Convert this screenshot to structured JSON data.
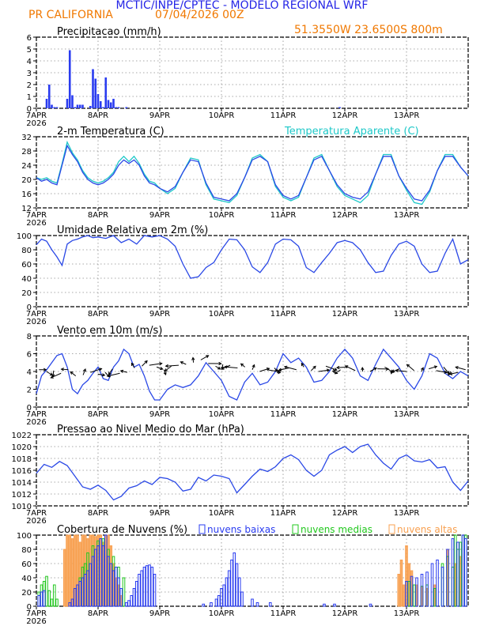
{
  "header": {
    "title": "MCTIC/INPE/CPTEC - MODELO REGIONAL WRF",
    "location": "PR CALIFORNIA",
    "run_date": "07/04/2026 00Z",
    "coordinates": "51.3550W 23.6500S 800m"
  },
  "colors": {
    "title": "#2424e6",
    "subtitle": "#f07800",
    "line_main": "#2a48e6",
    "line_apparent": "#1ec8c8",
    "precip_bar": "#2a3cf0",
    "cloud_low": "#2a3cf0",
    "cloud_mid": "#22c81e",
    "cloud_high": "#f8a050",
    "grid": "#8c8c8c"
  },
  "chart_data": [
    {
      "id": "precip",
      "type": "bar",
      "title": "Precipitacao (mm/h)",
      "ylim": [
        0,
        6
      ],
      "yticks": [
        0,
        1,
        2,
        3,
        4,
        5,
        6
      ],
      "x": [
        4,
        5,
        6,
        7,
        8,
        12,
        13,
        14,
        15,
        16,
        17,
        18,
        21,
        22,
        23,
        24,
        25,
        26,
        27,
        28,
        29,
        30,
        31,
        32,
        35,
        118
      ],
      "values": [
        0.8,
        2.0,
        0.3,
        0.1,
        0.1,
        0.8,
        4.9,
        1.1,
        0.1,
        0.3,
        0.3,
        0.3,
        0.2,
        3.3,
        2.5,
        1.2,
        0.6,
        0.1,
        2.6,
        0.7,
        0.5,
        0.8,
        0.1,
        0.1,
        0.1,
        0.1
      ]
    },
    {
      "id": "temp",
      "type": "line",
      "title": "2-m Temperatura (C)",
      "ylim": [
        12,
        32
      ],
      "yticks": [
        12,
        16,
        20,
        24,
        28,
        32
      ],
      "series": [
        {
          "name": "2-m Temperatura (C)",
          "x": [
            0,
            2,
            4,
            6,
            8,
            10,
            12,
            14,
            16,
            18,
            20,
            22,
            24,
            26,
            28,
            30,
            32,
            34,
            36,
            38,
            40,
            42,
            44,
            46,
            48,
            51,
            54,
            57,
            60,
            63,
            66,
            69,
            72,
            75,
            78,
            81,
            84,
            87,
            90,
            93,
            96,
            99,
            102,
            105,
            108,
            111,
            114,
            117,
            120,
            123,
            126,
            129,
            132,
            135,
            138,
            141,
            144,
            147,
            150,
            153,
            156,
            159,
            162,
            165,
            168
          ],
          "values": [
            20.5,
            19.5,
            20.0,
            19.0,
            18.5,
            24.0,
            29.5,
            27.0,
            25.0,
            22.0,
            20.0,
            19.0,
            18.5,
            19.0,
            20.0,
            21.5,
            24.0,
            25.5,
            24.5,
            25.5,
            24.0,
            21.0,
            19.0,
            18.5,
            17.5,
            16.5,
            18.0,
            22.0,
            25.5,
            25.0,
            19.0,
            15.0,
            14.5,
            14.0,
            16.0,
            20.5,
            25.5,
            26.5,
            25.0,
            18.5,
            15.5,
            14.5,
            15.5,
            20.5,
            25.5,
            26.5,
            22.5,
            18.5,
            16.0,
            15.0,
            14.5,
            16.5,
            21.5,
            26.5,
            26.5,
            21.0,
            17.5,
            14.5,
            14.0,
            17.0,
            22.5,
            26.5,
            26.5,
            23.5,
            21.0
          ]
        },
        {
          "name": "Temperatura Aparente (C)",
          "x": [
            0,
            2,
            4,
            6,
            8,
            10,
            12,
            14,
            16,
            18,
            20,
            22,
            24,
            26,
            28,
            30,
            32,
            34,
            36,
            38,
            40,
            42,
            44,
            46,
            48,
            51,
            54,
            57,
            60,
            63,
            66,
            69,
            72,
            75,
            78,
            81,
            84,
            87,
            90,
            93,
            96,
            99,
            102,
            105,
            108,
            111,
            114,
            117,
            120,
            123,
            126,
            129,
            132,
            135,
            138,
            141,
            144,
            147,
            150,
            153,
            156,
            159,
            162,
            165,
            168
          ],
          "values": [
            20.5,
            20.0,
            20.5,
            19.5,
            19.0,
            24.5,
            30.5,
            27.5,
            25.5,
            22.5,
            20.5,
            19.5,
            19.0,
            19.5,
            20.5,
            22.0,
            25.0,
            26.5,
            25.0,
            26.5,
            24.5,
            21.5,
            19.5,
            19.0,
            17.5,
            16.0,
            17.5,
            22.0,
            26.0,
            25.5,
            18.5,
            14.5,
            14.0,
            13.5,
            15.5,
            20.5,
            26.0,
            27.0,
            25.0,
            18.0,
            15.0,
            14.0,
            15.0,
            20.5,
            26.0,
            27.0,
            22.5,
            18.0,
            15.5,
            14.5,
            13.5,
            15.5,
            21.5,
            27.0,
            27.0,
            21.0,
            17.0,
            13.5,
            13.0,
            16.5,
            22.5,
            27.0,
            27.0,
            23.5,
            21.0
          ]
        }
      ]
    },
    {
      "id": "rh",
      "type": "line",
      "title": "Umidade Relativa em 2m (%)",
      "ylim": [
        0,
        100
      ],
      "yticks": [
        0,
        20,
        40,
        60,
        80,
        100
      ],
      "series": [
        {
          "x": [
            0,
            2,
            4,
            6,
            8,
            10,
            12,
            14,
            16,
            18,
            20,
            22,
            24,
            27,
            30,
            33,
            36,
            39,
            42,
            45,
            48,
            51,
            54,
            57,
            60,
            63,
            66,
            69,
            72,
            75,
            78,
            81,
            84,
            87,
            90,
            93,
            96,
            99,
            102,
            105,
            108,
            111,
            114,
            117,
            120,
            123,
            126,
            129,
            132,
            135,
            138,
            141,
            144,
            147,
            150,
            153,
            156,
            159,
            162,
            165,
            168
          ],
          "values": [
            87,
            95,
            92,
            80,
            70,
            58,
            88,
            93,
            95,
            98,
            100,
            97,
            98,
            96,
            100,
            90,
            95,
            88,
            100,
            98,
            100,
            95,
            85,
            60,
            40,
            42,
            55,
            62,
            80,
            95,
            94,
            80,
            56,
            48,
            62,
            88,
            95,
            94,
            85,
            55,
            48,
            62,
            75,
            90,
            93,
            90,
            80,
            62,
            48,
            50,
            72,
            88,
            92,
            85,
            60,
            48,
            50,
            75,
            95,
            60,
            66
          ]
        }
      ]
    },
    {
      "id": "wind",
      "type": "line",
      "title": "Vento em 10m (m/s)",
      "ylim": [
        0,
        8
      ],
      "yticks": [
        0,
        2,
        4,
        6,
        8
      ],
      "series": [
        {
          "x": [
            0,
            2,
            4,
            6,
            8,
            10,
            12,
            14,
            16,
            18,
            20,
            22,
            24,
            26,
            28,
            30,
            32,
            34,
            36,
            38,
            40,
            42,
            44,
            46,
            48,
            51,
            54,
            57,
            60,
            63,
            66,
            69,
            72,
            75,
            78,
            81,
            84,
            87,
            90,
            93,
            96,
            99,
            102,
            105,
            108,
            111,
            114,
            117,
            120,
            123,
            126,
            129,
            132,
            135,
            138,
            141,
            144,
            147,
            150,
            153,
            156,
            159,
            162,
            165,
            168
          ],
          "values": [
            1.5,
            3.5,
            4.2,
            5.0,
            5.8,
            6.0,
            4.5,
            2.0,
            1.5,
            2.5,
            3.0,
            3.8,
            4.5,
            3.2,
            3.0,
            4.5,
            5.2,
            6.5,
            6.0,
            4.5,
            4.8,
            3.5,
            1.8,
            0.8,
            0.8,
            2.0,
            2.5,
            2.2,
            2.5,
            3.5,
            5.0,
            4.0,
            3.0,
            1.2,
            0.8,
            2.8,
            3.8,
            2.5,
            2.8,
            4.0,
            6.0,
            5.0,
            5.5,
            4.5,
            2.8,
            3.0,
            4.0,
            5.5,
            6.5,
            5.5,
            3.5,
            3.0,
            4.8,
            6.5,
            5.5,
            4.5,
            3.0,
            2.0,
            3.5,
            6.0,
            5.5,
            3.8,
            3.2,
            4.0,
            3.5
          ]
        }
      ],
      "barbs_speed": [
        4.2,
        4.0,
        4.1,
        3.8,
        4.2,
        3.5,
        3.6,
        3.9,
        3.7,
        3.9,
        4.3,
        3.8,
        3.9,
        4.4,
        4.6,
        4.7,
        4.5,
        4.2,
        4.6,
        4.7,
        4.8,
        5.0,
        5.3,
        4.9,
        4.6,
        4.8,
        4.7,
        4.4,
        4.5,
        4.2,
        4.0,
        4.2,
        4.4,
        4.3,
        4.4,
        4.2,
        4.5,
        4.1,
        4.0,
        4.6,
        4.3,
        4.2,
        4.5,
        4.1,
        4.0,
        4.0,
        4.3,
        4.5,
        4.2,
        4.3,
        4.0,
        4.1,
        4.0,
        4.3,
        4.1,
        4.5,
        4.0,
        3.9,
        4.2
      ]
    },
    {
      "id": "pressure",
      "type": "line",
      "title": "Pressao ao Nivel Medio do Mar (hPa)",
      "ylim": [
        1010,
        1022
      ],
      "yticks": [
        1010,
        1012,
        1014,
        1016,
        1018,
        1020,
        1022
      ],
      "series": [
        {
          "x": [
            0,
            3,
            6,
            9,
            12,
            15,
            18,
            21,
            24,
            27,
            30,
            33,
            36,
            39,
            42,
            45,
            48,
            51,
            54,
            57,
            60,
            63,
            66,
            69,
            72,
            75,
            78,
            81,
            84,
            87,
            90,
            93,
            96,
            99,
            102,
            105,
            108,
            111,
            114,
            117,
            120,
            123,
            126,
            129,
            132,
            135,
            138,
            141,
            144,
            147,
            150,
            153,
            156,
            159,
            162,
            165,
            168
          ],
          "values": [
            1015.5,
            1017.0,
            1016.5,
            1017.5,
            1016.8,
            1015.0,
            1013.2,
            1012.8,
            1013.5,
            1012.6,
            1011.0,
            1011.6,
            1013.0,
            1013.4,
            1014.2,
            1013.6,
            1014.8,
            1014.6,
            1014.0,
            1012.5,
            1012.8,
            1014.8,
            1014.2,
            1015.2,
            1015.0,
            1014.6,
            1012.2,
            1013.6,
            1015.0,
            1016.2,
            1015.8,
            1016.6,
            1018.0,
            1018.6,
            1017.8,
            1016.0,
            1015.0,
            1016.0,
            1018.6,
            1019.4,
            1020.0,
            1019.0,
            1020.0,
            1020.4,
            1018.6,
            1017.2,
            1016.2,
            1018.0,
            1018.6,
            1017.6,
            1017.4,
            1017.8,
            1016.4,
            1016.6,
            1014.0,
            1012.6,
            1014.2
          ]
        }
      ]
    },
    {
      "id": "cloud",
      "type": "bar",
      "title": "Cobertura de Nuvens (%)",
      "ylim": [
        0,
        100
      ],
      "yticks": [
        0,
        20,
        40,
        60,
        80,
        100
      ],
      "series": [
        {
          "name": "nuvens baixas",
          "x": [
            1,
            2,
            3,
            13,
            14,
            15,
            16,
            17,
            18,
            19,
            20,
            21,
            22,
            23,
            24,
            25,
            26,
            27,
            28,
            29,
            30,
            31,
            32,
            33,
            35,
            36,
            37,
            38,
            39,
            40,
            41,
            42,
            43,
            44,
            45,
            46,
            65,
            68,
            70,
            71,
            72,
            73,
            74,
            75,
            76,
            77,
            78,
            79,
            80,
            84,
            86,
            91,
            112,
            116,
            130,
            144,
            146,
            148,
            150,
            152,
            154,
            156,
            158,
            160,
            162,
            164,
            166,
            167
          ],
          "values": [
            15,
            20,
            22,
            5,
            10,
            25,
            30,
            35,
            40,
            45,
            50,
            60,
            70,
            80,
            85,
            95,
            85,
            100,
            70,
            60,
            50,
            55,
            40,
            25,
            5,
            8,
            15,
            25,
            35,
            45,
            50,
            55,
            57,
            58,
            55,
            45,
            3,
            5,
            10,
            15,
            25,
            30,
            40,
            50,
            65,
            75,
            60,
            40,
            20,
            10,
            5,
            5,
            3,
            3,
            3,
            35,
            42,
            40,
            45,
            48,
            60,
            65,
            55,
            80,
            95,
            90,
            100,
            95
          ]
        },
        {
          "name": "nuvens medias",
          "x": [
            1,
            2,
            3,
            4,
            5,
            6,
            7,
            8,
            17,
            18,
            19,
            20,
            22,
            24,
            26,
            28,
            30,
            32,
            34,
            145,
            147,
            150,
            152,
            155,
            158,
            160,
            162,
            163,
            164,
            165,
            166,
            167
          ],
          "values": [
            20,
            30,
            35,
            42,
            22,
            10,
            30,
            10,
            40,
            55,
            60,
            75,
            85,
            92,
            95,
            80,
            70,
            55,
            40,
            35,
            30,
            28,
            30,
            25,
            60,
            70,
            55,
            100,
            80,
            90,
            100,
            100
          ]
        },
        {
          "name": "nuvens altas",
          "x": [
            11,
            12,
            13,
            14,
            15,
            16,
            17,
            18,
            19,
            20,
            21,
            22,
            23,
            24,
            25,
            26,
            27,
            28,
            29,
            30,
            31,
            32,
            33,
            141,
            142,
            143,
            144,
            145,
            146,
            148,
            150,
            152,
            155,
            160,
            163,
            165
          ],
          "values": [
            80,
            100,
            100,
            95,
            100,
            100,
            90,
            100,
            100,
            95,
            100,
            100,
            98,
            100,
            100,
            90,
            100,
            100,
            85,
            60,
            40,
            30,
            15,
            45,
            65,
            30,
            85,
            60,
            50,
            30,
            28,
            25,
            30,
            80,
            60,
            70
          ]
        }
      ]
    }
  ],
  "xaxis": {
    "xlim": [
      0,
      168
    ],
    "tick_labels": [
      "7APR",
      "8APR",
      "9APR",
      "10APR",
      "11APR",
      "12APR",
      "13APR"
    ],
    "year_label": "2026"
  }
}
